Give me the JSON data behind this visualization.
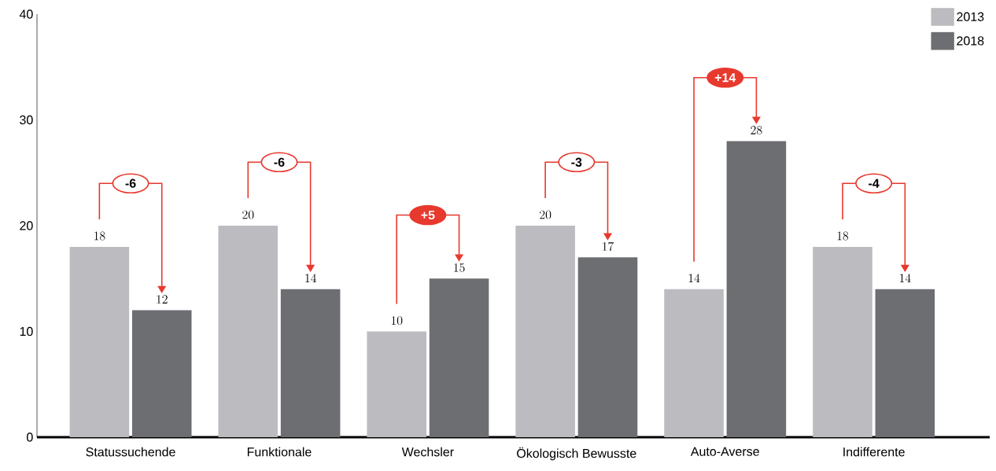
{
  "chart_data": {
    "type": "bar",
    "categories": [
      "Statussuchende",
      "Funktionale",
      "Wechsler",
      "Ökologisch Bewusste",
      "Auto-Averse",
      "Indifferente"
    ],
    "series": [
      {
        "name": "2013",
        "color": "#bcbcc0",
        "values": [
          18,
          20,
          10,
          20,
          14,
          18
        ]
      },
      {
        "name": "2018",
        "color": "#6d6e72",
        "values": [
          12,
          14,
          15,
          17,
          28,
          14
        ]
      }
    ],
    "ylim": [
      0,
      40
    ],
    "yticks": [
      0,
      10,
      20,
      30,
      40
    ],
    "data_labels": true,
    "legend": "top right",
    "grid": false,
    "annotations": [
      "-6",
      "-6",
      "+5",
      "-3",
      "+14",
      "-4"
    ]
  }
}
